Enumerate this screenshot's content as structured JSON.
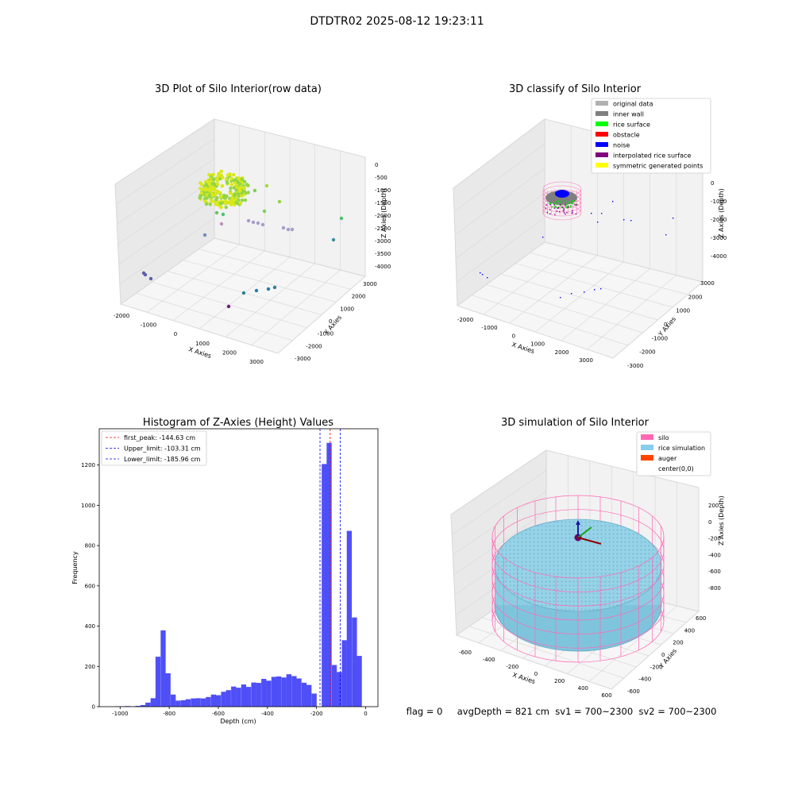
{
  "suptitle": "DTDTR02 2025-08-12 19:23:11",
  "footer": "flag = 0     avgDepth = 821 cm  sv1 = 700~2300  sv2 = 700~2300",
  "chart_data": [
    {
      "type": "scatter",
      "title": "3D Plot of Silo Interior(row data)",
      "xlabel": "X Axies",
      "ylabel": "Y Axies",
      "zlabel": "Z Axies (Depth)",
      "x_ticks": [
        "-2000",
        "-1000",
        "0",
        "1000",
        "2000",
        "3000"
      ],
      "y_ticks": [
        "-3000",
        "-2000",
        "-1000",
        "0",
        "1000",
        "2000",
        "3000"
      ],
      "z_ticks": [
        "0",
        "-500",
        "-1000",
        "-1500",
        "-2000",
        "-2500",
        "-3000",
        "-3500",
        "-4000"
      ],
      "grid": true,
      "colormap": "viridis"
    },
    {
      "type": "scatter",
      "title": "3D classify of Silo Interior",
      "xlabel": "X Axies",
      "ylabel": "Y Axies",
      "zlabel": "Z Axies (Depth)",
      "x_ticks": [
        "-2000",
        "-1000",
        "0",
        "1000",
        "2000",
        "3000"
      ],
      "y_ticks": [
        "-3000",
        "-2000",
        "-1000",
        "0",
        "1000",
        "2000",
        "3000"
      ],
      "z_ticks": [
        "0",
        "-1000",
        "-2000",
        "-3000",
        "-4000"
      ],
      "grid": true,
      "legend": [
        {
          "name": "original data",
          "color": "#b0b0b0"
        },
        {
          "name": "inner wall",
          "color": "#808080"
        },
        {
          "name": "rice surface",
          "color": "#00ff00"
        },
        {
          "name": "obstacle",
          "color": "#ff0000"
        },
        {
          "name": "noise",
          "color": "#0000ff"
        },
        {
          "name": "interpolated rice surface",
          "color": "#800080"
        },
        {
          "name": "symmetric generated points",
          "color": "#ffff00"
        }
      ],
      "legend_position": "top-right"
    },
    {
      "type": "bar",
      "title": "Histogram of Z-Axies (Height) Values",
      "xlabel": "Depth (cm)",
      "ylabel": "Frequency",
      "xlim": [
        -1085,
        50
      ],
      "ylim": [
        0,
        1380
      ],
      "x_ticks": [
        "-1000",
        "-800",
        "-600",
        "-400",
        "-200",
        "0"
      ],
      "y_ticks": [
        "0",
        "200",
        "400",
        "600",
        "800",
        "1000",
        "1200"
      ],
      "bin_width": 20.5,
      "bins": [
        [
          -1020,
          2
        ],
        [
          -999,
          2
        ],
        [
          -979,
          3
        ],
        [
          -958,
          1
        ],
        [
          -938,
          4
        ],
        [
          -917,
          8
        ],
        [
          -897,
          20
        ],
        [
          -876,
          42
        ],
        [
          -856,
          248
        ],
        [
          -835,
          379
        ],
        [
          -815,
          166
        ],
        [
          -794,
          60
        ],
        [
          -774,
          30
        ],
        [
          -753,
          32
        ],
        [
          -733,
          37
        ],
        [
          -712,
          41
        ],
        [
          -692,
          42
        ],
        [
          -671,
          41
        ],
        [
          -651,
          48
        ],
        [
          -630,
          60
        ],
        [
          -610,
          57
        ],
        [
          -589,
          74
        ],
        [
          -569,
          82
        ],
        [
          -548,
          100
        ],
        [
          -528,
          94
        ],
        [
          -507,
          110
        ],
        [
          -487,
          98
        ],
        [
          -466,
          120
        ],
        [
          -446,
          118
        ],
        [
          -425,
          138
        ],
        [
          -405,
          129
        ],
        [
          -384,
          148
        ],
        [
          -364,
          150
        ],
        [
          -343,
          145
        ],
        [
          -323,
          161
        ],
        [
          -302,
          152
        ],
        [
          -282,
          140
        ],
        [
          -261,
          119
        ],
        [
          -241,
          108
        ],
        [
          -220,
          65
        ],
        [
          -200,
          0
        ],
        [
          -179,
          1205
        ],
        [
          -159,
          1310
        ],
        [
          -138,
          207
        ],
        [
          -118,
          172
        ],
        [
          -97,
          330
        ],
        [
          -77,
          873
        ],
        [
          -56,
          443
        ],
        [
          -36,
          252
        ]
      ],
      "vlines": [
        {
          "label": "first_peak: -144.63 cm",
          "value": -144.63,
          "color": "#ff0000"
        },
        {
          "label": "Upper_limit: -103.31 cm",
          "value": -103.31,
          "color": "#0000ff"
        },
        {
          "label": "Lower_limit: -185.96 cm",
          "value": -185.96,
          "color": "#0000ff"
        }
      ],
      "bar_color": "#4f4ff7",
      "legend_position": "top-left"
    },
    {
      "type": "scatter",
      "title": "3D simulation of Silo Interior",
      "xlabel": "X Axies",
      "ylabel": "Y Axies",
      "zlabel": "Z Axies (Depth)",
      "x_ticks": [
        "-600",
        "-400",
        "-200",
        "0",
        "200",
        "400",
        "600"
      ],
      "y_ticks": [
        "-600",
        "-400",
        "-200",
        "0",
        "200",
        "400",
        "600"
      ],
      "z_ticks": [
        "200",
        "0",
        "-200",
        "-400",
        "-600",
        "-800"
      ],
      "grid": true,
      "legend": [
        {
          "name": "silo",
          "color": "#ff69b4"
        },
        {
          "name": "rice simulation",
          "color": "#87ceeb"
        },
        {
          "name": "auger",
          "color": "#ff4500"
        },
        {
          "name": "center(0,0)",
          "color": ""
        }
      ],
      "legend_position": "top-right"
    }
  ]
}
